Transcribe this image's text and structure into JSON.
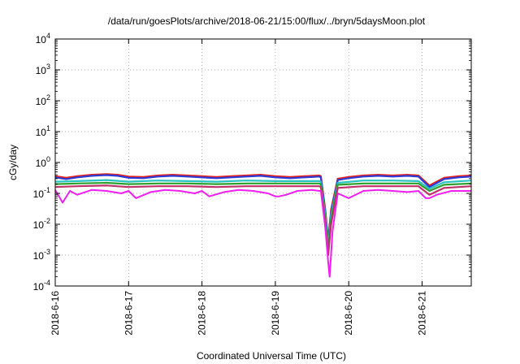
{
  "chart_data": {
    "type": "line",
    "title": "/data/run/goesPlots/archive/2018-06-21/15:00/flux/../bryn/5daysMoon.plot",
    "xlabel": "Coordinated Universal Time (UTC)",
    "ylabel": "cGy/day",
    "yscale": "log",
    "ylim": [
      0.0001,
      10000
    ],
    "y_ticks": [
      {
        "base": "10",
        "exp": "-4",
        "value": 0.0001
      },
      {
        "base": "10",
        "exp": "-3",
        "value": 0.001
      },
      {
        "base": "10",
        "exp": "-2",
        "value": 0.01
      },
      {
        "base": "10",
        "exp": "-1",
        "value": 0.1
      },
      {
        "base": "10",
        "exp": "0",
        "value": 1
      },
      {
        "base": "10",
        "exp": "1",
        "value": 10
      },
      {
        "base": "10",
        "exp": "2",
        "value": 100
      },
      {
        "base": "10",
        "exp": "3",
        "value": 1000
      },
      {
        "base": "10",
        "exp": "4",
        "value": 10000
      }
    ],
    "x_ticks": [
      "2018-6-16",
      "2018-6-17",
      "2018-6-18",
      "2018-6-19",
      "2018-6-20",
      "2018-6-21"
    ],
    "xlim_days": [
      0,
      5.67
    ],
    "grid": true,
    "legend": "none",
    "series": [
      {
        "color": "#e8201a",
        "x": [
          0,
          0.15,
          0.3,
          0.5,
          0.7,
          0.85,
          1.0,
          1.2,
          1.4,
          1.6,
          1.8,
          2.0,
          2.2,
          2.4,
          2.6,
          2.8,
          3.0,
          3.2,
          3.4,
          3.6,
          3.62,
          3.68,
          3.72,
          3.76,
          3.85,
          4.0,
          4.2,
          4.4,
          4.6,
          4.8,
          4.95,
          5.1,
          5.3,
          5.5,
          5.67
        ],
        "y": [
          0.36,
          0.32,
          0.36,
          0.4,
          0.42,
          0.4,
          0.35,
          0.34,
          0.38,
          0.4,
          0.38,
          0.36,
          0.34,
          0.36,
          0.38,
          0.4,
          0.36,
          0.34,
          0.36,
          0.38,
          0.36,
          0.03,
          0.003,
          0.03,
          0.3,
          0.34,
          0.38,
          0.4,
          0.38,
          0.4,
          0.38,
          0.18,
          0.32,
          0.36,
          0.38
        ]
      },
      {
        "color": "#2a3bd8",
        "x": [
          0,
          0.15,
          0.3,
          0.5,
          0.7,
          0.85,
          1.0,
          1.2,
          1.4,
          1.6,
          1.8,
          2.0,
          2.2,
          2.4,
          2.6,
          2.8,
          3.0,
          3.2,
          3.4,
          3.6,
          3.62,
          3.68,
          3.72,
          3.76,
          3.85,
          4.0,
          4.2,
          4.4,
          4.6,
          4.8,
          4.95,
          5.1,
          5.3,
          5.5,
          5.67
        ],
        "y": [
          0.33,
          0.29,
          0.33,
          0.37,
          0.39,
          0.37,
          0.32,
          0.31,
          0.35,
          0.37,
          0.35,
          0.33,
          0.31,
          0.33,
          0.35,
          0.37,
          0.33,
          0.31,
          0.33,
          0.35,
          0.33,
          0.025,
          0.0025,
          0.025,
          0.27,
          0.31,
          0.35,
          0.37,
          0.35,
          0.37,
          0.35,
          0.16,
          0.29,
          0.33,
          0.35
        ]
      },
      {
        "color": "#28c4c4",
        "x": [
          0,
          0.3,
          0.7,
          1.0,
          1.4,
          1.8,
          2.2,
          2.6,
          3.0,
          3.4,
          3.6,
          3.62,
          3.68,
          3.72,
          3.76,
          3.85,
          4.2,
          4.6,
          4.95,
          5.1,
          5.3,
          5.67
        ],
        "y": [
          0.24,
          0.25,
          0.27,
          0.24,
          0.26,
          0.25,
          0.24,
          0.26,
          0.25,
          0.25,
          0.25,
          0.24,
          0.02,
          0.002,
          0.02,
          0.22,
          0.26,
          0.26,
          0.25,
          0.14,
          0.23,
          0.26
        ]
      },
      {
        "color": "#2ca02c",
        "x": [
          0,
          0.3,
          0.7,
          1.0,
          1.4,
          1.8,
          2.2,
          2.6,
          3.0,
          3.4,
          3.6,
          3.62,
          3.68,
          3.72,
          3.76,
          3.85,
          4.2,
          4.6,
          4.95,
          5.1,
          5.3,
          5.67
        ],
        "y": [
          0.2,
          0.21,
          0.22,
          0.2,
          0.21,
          0.21,
          0.2,
          0.21,
          0.21,
          0.21,
          0.21,
          0.2,
          0.015,
          0.0015,
          0.015,
          0.19,
          0.21,
          0.21,
          0.21,
          0.12,
          0.19,
          0.21
        ]
      },
      {
        "color": "#c0306a",
        "x": [
          0,
          0.3,
          0.7,
          1.0,
          1.4,
          1.8,
          2.2,
          2.6,
          3.0,
          3.4,
          3.6,
          3.62,
          3.68,
          3.72,
          3.76,
          3.85,
          4.2,
          4.6,
          4.95,
          5.1,
          5.3,
          5.67
        ],
        "y": [
          0.16,
          0.17,
          0.18,
          0.16,
          0.17,
          0.17,
          0.16,
          0.17,
          0.17,
          0.17,
          0.17,
          0.16,
          0.01,
          0.001,
          0.01,
          0.15,
          0.17,
          0.17,
          0.17,
          0.09,
          0.15,
          0.17
        ]
      },
      {
        "color": "#f01ef0",
        "x": [
          0,
          0.1,
          0.2,
          0.3,
          0.5,
          0.7,
          0.9,
          1.0,
          1.1,
          1.3,
          1.5,
          1.7,
          1.9,
          2.0,
          2.1,
          2.3,
          2.5,
          2.7,
          2.9,
          3.0,
          3.05,
          3.15,
          3.3,
          3.5,
          3.6,
          3.62,
          3.68,
          3.72,
          3.74,
          3.78,
          3.85,
          4.0,
          4.2,
          4.4,
          4.6,
          4.8,
          4.95,
          5.05,
          5.1,
          5.2,
          5.4,
          5.67
        ],
        "y": [
          0.13,
          0.05,
          0.12,
          0.09,
          0.13,
          0.12,
          0.1,
          0.12,
          0.07,
          0.11,
          0.13,
          0.12,
          0.1,
          0.12,
          0.08,
          0.11,
          0.13,
          0.12,
          0.1,
          0.08,
          0.08,
          0.09,
          0.12,
          0.13,
          0.12,
          0.12,
          0.008,
          0.0006,
          0.0002,
          0.006,
          0.1,
          0.07,
          0.12,
          0.13,
          0.12,
          0.11,
          0.12,
          0.07,
          0.07,
          0.09,
          0.12,
          0.12
        ]
      }
    ]
  }
}
